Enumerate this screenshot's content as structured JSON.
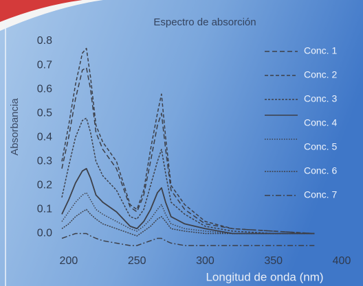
{
  "chart_data": {
    "type": "line",
    "title": "Espectro de absorción",
    "xlabel": "Longitud de onda (nm)",
    "ylabel": "Absorbancia",
    "x": [
      195,
      200,
      205,
      210,
      213,
      216,
      220,
      225,
      235,
      245,
      250,
      255,
      260,
      265,
      268,
      271,
      275,
      285,
      300,
      320,
      350,
      380
    ],
    "series": [
      {
        "name": "Conc. 1",
        "color": "#3c3f48",
        "dash": "7 4",
        "values": [
          0.27,
          0.4,
          0.56,
          0.68,
          0.69,
          0.6,
          0.42,
          0.35,
          0.27,
          0.11,
          0.09,
          0.16,
          0.3,
          0.45,
          0.5,
          0.35,
          0.18,
          0.1,
          0.04,
          0.02,
          0.01,
          0.0
        ]
      },
      {
        "name": "Conc. 2",
        "color": "#3c3f48",
        "dash": "5 3",
        "values": [
          0.3,
          0.45,
          0.62,
          0.75,
          0.77,
          0.65,
          0.45,
          0.38,
          0.3,
          0.12,
          0.1,
          0.18,
          0.35,
          0.5,
          0.58,
          0.4,
          0.2,
          0.12,
          0.05,
          0.02,
          0.01,
          0.0
        ]
      },
      {
        "name": "Conc. 3",
        "color": "#3c3f48",
        "dash": "3 2",
        "values": [
          0.15,
          0.28,
          0.4,
          0.47,
          0.48,
          0.42,
          0.3,
          0.24,
          0.18,
          0.07,
          0.06,
          0.1,
          0.2,
          0.3,
          0.35,
          0.25,
          0.13,
          0.08,
          0.03,
          0.01,
          0.0,
          0.0
        ]
      },
      {
        "name": "Conc. 4",
        "color": "#3c3f48",
        "dash": "none",
        "values": [
          0.08,
          0.14,
          0.21,
          0.26,
          0.27,
          0.23,
          0.16,
          0.13,
          0.09,
          0.03,
          0.02,
          0.05,
          0.1,
          0.17,
          0.19,
          0.13,
          0.07,
          0.04,
          0.02,
          0.0,
          0.0,
          0.0
        ]
      },
      {
        "name": "Conc. 5",
        "color": "#3c3f48",
        "dash": "1.5 2",
        "values": [
          0.05,
          0.09,
          0.13,
          0.16,
          0.17,
          0.14,
          0.1,
          0.08,
          0.05,
          0.02,
          0.01,
          0.03,
          0.06,
          0.1,
          0.12,
          0.08,
          0.04,
          0.02,
          0.01,
          0.0,
          0.0,
          0.0
        ]
      },
      {
        "name": "Conc. 6",
        "color": "#3c3f48",
        "dash": "2 1.5",
        "values": [
          0.02,
          0.04,
          0.07,
          0.09,
          0.1,
          0.08,
          0.06,
          0.04,
          0.02,
          0.0,
          -0.01,
          0.01,
          0.03,
          0.06,
          0.07,
          0.05,
          0.02,
          0.01,
          0.0,
          0.0,
          0.0,
          0.0
        ]
      },
      {
        "name": "Conc.  7",
        "color": "#3c3f48",
        "dash": "8 3 2 3",
        "values": [
          -0.02,
          -0.01,
          0.0,
          0.0,
          0.0,
          -0.01,
          -0.02,
          -0.03,
          -0.04,
          -0.05,
          -0.05,
          -0.04,
          -0.03,
          -0.02,
          -0.02,
          -0.03,
          -0.04,
          -0.05,
          -0.05,
          -0.05,
          -0.05,
          -0.05
        ]
      }
    ],
    "xlim": [
      194,
      400
    ],
    "ylim": [
      -0.07,
      0.8
    ],
    "xticks": [
      200,
      250,
      300,
      350,
      400
    ],
    "yticks": [
      {
        "value": 0,
        "label": "0.0"
      },
      0.1,
      0.2,
      0.3,
      0.4,
      0.5,
      0.6,
      0.7,
      0.8
    ],
    "legend": "right"
  }
}
